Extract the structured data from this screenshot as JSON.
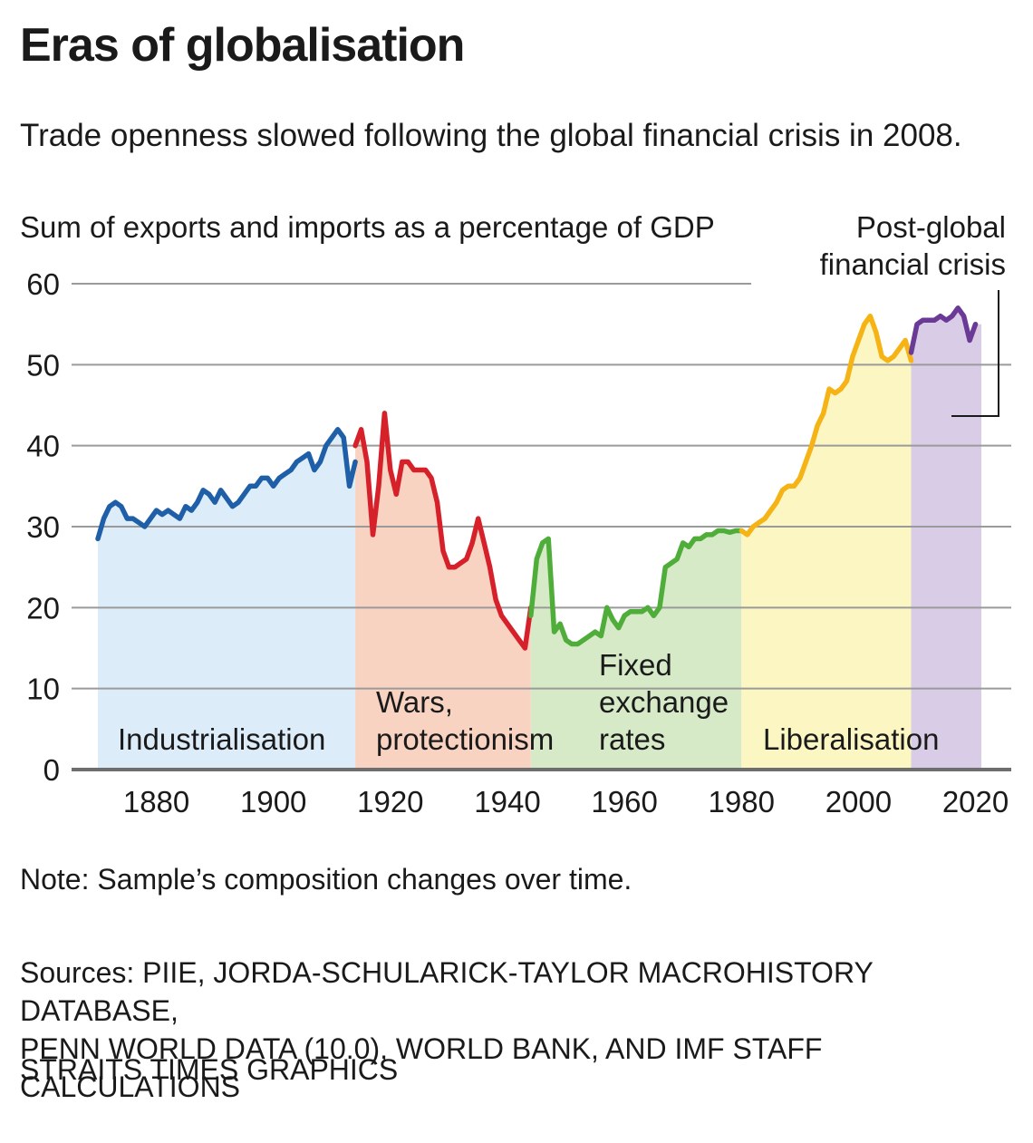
{
  "title": "Eras of globalisation",
  "subtitle": "Trade openness slowed following the global financial crisis in 2008.",
  "note": "Note: Sample’s composition changes over time.",
  "sources": {
    "line1": "Sources: PIIE, JORDA-SCHULARICK-TAYLOR MACROHISTORY DATABASE,",
    "line2": "PENN WORLD DATA (10.0), WORLD BANK, AND IMF STAFF CALCULATIONS"
  },
  "credit": "STRAITS TIMES GRAPHICS",
  "chart_data": {
    "type": "line",
    "title": "Eras of globalisation",
    "ylabel": "Sum of exports and imports as a percentage of GDP",
    "xlabel": "",
    "ylim": [
      0,
      60
    ],
    "xlim": [
      1870,
      2021
    ],
    "yticks": [
      "0",
      "10",
      "20",
      "30",
      "40",
      "50",
      "60"
    ],
    "xticks": [
      "1880",
      "1900",
      "1920",
      "1940",
      "1960",
      "1980",
      "2000",
      "2020"
    ],
    "grid": true,
    "annotation": {
      "line1": "Post-global",
      "line2": "financial crisis",
      "target_years": [
        2009,
        2021
      ]
    },
    "eras": [
      {
        "name": "Industrialisation",
        "label_lines": [
          "Industrialisation"
        ],
        "start": 1870,
        "end": 1914,
        "fill": "#dcecf9",
        "color": "#1f5fa8",
        "points": [
          [
            1870,
            28.5
          ],
          [
            1871,
            31
          ],
          [
            1872,
            32.5
          ],
          [
            1873,
            33
          ],
          [
            1874,
            32.5
          ],
          [
            1875,
            31
          ],
          [
            1876,
            31
          ],
          [
            1877,
            30.5
          ],
          [
            1878,
            30
          ],
          [
            1879,
            31
          ],
          [
            1880,
            32
          ],
          [
            1881,
            31.5
          ],
          [
            1882,
            32
          ],
          [
            1883,
            31.5
          ],
          [
            1884,
            31
          ],
          [
            1885,
            32.5
          ],
          [
            1886,
            32
          ],
          [
            1887,
            33
          ],
          [
            1888,
            34.5
          ],
          [
            1889,
            34
          ],
          [
            1890,
            33
          ],
          [
            1891,
            34.5
          ],
          [
            1892,
            33.5
          ],
          [
            1893,
            32.5
          ],
          [
            1894,
            33
          ],
          [
            1895,
            34
          ],
          [
            1896,
            35
          ],
          [
            1897,
            35
          ],
          [
            1898,
            36
          ],
          [
            1899,
            36
          ],
          [
            1900,
            35
          ],
          [
            1901,
            36
          ],
          [
            1902,
            36.5
          ],
          [
            1903,
            37
          ],
          [
            1904,
            38
          ],
          [
            1905,
            38.5
          ],
          [
            1906,
            39
          ],
          [
            1907,
            37
          ],
          [
            1908,
            38
          ],
          [
            1909,
            40
          ],
          [
            1910,
            41
          ],
          [
            1911,
            42
          ],
          [
            1912,
            41
          ],
          [
            1913,
            35
          ],
          [
            1914,
            38
          ]
        ]
      },
      {
        "name": "Wars, protectionism",
        "label_lines": [
          "Wars,",
          "protectionism"
        ],
        "start": 1914,
        "end": 1944,
        "fill": "#f9d3c2",
        "color": "#d6202a",
        "points": [
          [
            1914,
            40
          ],
          [
            1915,
            42
          ],
          [
            1916,
            38
          ],
          [
            1917,
            29
          ],
          [
            1918,
            35
          ],
          [
            1919,
            44
          ],
          [
            1920,
            37
          ],
          [
            1921,
            34
          ],
          [
            1922,
            38
          ],
          [
            1923,
            38
          ],
          [
            1924,
            37
          ],
          [
            1925,
            37
          ],
          [
            1926,
            37
          ],
          [
            1927,
            36
          ],
          [
            1928,
            33
          ],
          [
            1929,
            27
          ],
          [
            1930,
            25
          ],
          [
            1931,
            25
          ],
          [
            1932,
            25.5
          ],
          [
            1933,
            26
          ],
          [
            1934,
            28
          ],
          [
            1935,
            31
          ],
          [
            1936,
            28
          ],
          [
            1937,
            25
          ],
          [
            1938,
            21
          ],
          [
            1939,
            19
          ],
          [
            1940,
            18
          ],
          [
            1941,
            17
          ],
          [
            1942,
            16
          ],
          [
            1943,
            15
          ],
          [
            1944,
            20
          ]
        ]
      },
      {
        "name": "Fixed exchange rates",
        "label_lines": [
          "Fixed",
          "exchange",
          "rates"
        ],
        "start": 1944,
        "end": 1980,
        "fill": "#d6eac8",
        "color": "#4fad3a",
        "points": [
          [
            1944,
            19
          ],
          [
            1945,
            26
          ],
          [
            1946,
            28
          ],
          [
            1947,
            28.5
          ],
          [
            1948,
            17
          ],
          [
            1949,
            18
          ],
          [
            1950,
            16
          ],
          [
            1951,
            15.5
          ],
          [
            1952,
            15.5
          ],
          [
            1953,
            16
          ],
          [
            1954,
            16.5
          ],
          [
            1955,
            17
          ],
          [
            1956,
            16.5
          ],
          [
            1957,
            20
          ],
          [
            1958,
            18.5
          ],
          [
            1959,
            17.5
          ],
          [
            1960,
            19
          ],
          [
            1961,
            19.5
          ],
          [
            1962,
            19.5
          ],
          [
            1963,
            19.5
          ],
          [
            1964,
            20
          ],
          [
            1965,
            19
          ],
          [
            1966,
            20
          ],
          [
            1967,
            25
          ],
          [
            1968,
            25.5
          ],
          [
            1969,
            26
          ],
          [
            1970,
            28
          ],
          [
            1971,
            27.5
          ],
          [
            1972,
            28.5
          ],
          [
            1973,
            28.5
          ],
          [
            1974,
            29
          ],
          [
            1975,
            29
          ],
          [
            1976,
            29.5
          ],
          [
            1977,
            29.5
          ],
          [
            1978,
            29.3
          ],
          [
            1979,
            29.5
          ],
          [
            1980,
            29.5
          ]
        ]
      },
      {
        "name": "Liberalisation",
        "label_lines": [
          "Liberalisation"
        ],
        "start": 1980,
        "end": 2009,
        "fill": "#fcf7c2",
        "color": "#f5b316",
        "points": [
          [
            1980,
            29.5
          ],
          [
            1981,
            29
          ],
          [
            1982,
            30
          ],
          [
            1983,
            30.5
          ],
          [
            1984,
            31
          ],
          [
            1985,
            32
          ],
          [
            1986,
            33
          ],
          [
            1987,
            34.5
          ],
          [
            1988,
            35
          ],
          [
            1989,
            35
          ],
          [
            1990,
            36
          ],
          [
            1991,
            38
          ],
          [
            1992,
            40
          ],
          [
            1993,
            42.5
          ],
          [
            1994,
            44
          ],
          [
            1995,
            47
          ],
          [
            1996,
            46.5
          ],
          [
            1997,
            47
          ],
          [
            1998,
            48
          ],
          [
            1999,
            51
          ],
          [
            2000,
            53
          ],
          [
            2001,
            55
          ],
          [
            2002,
            56
          ],
          [
            2003,
            54
          ],
          [
            2004,
            51
          ],
          [
            2005,
            50.5
          ],
          [
            2006,
            51
          ],
          [
            2007,
            52
          ],
          [
            2008,
            53
          ],
          [
            2009,
            50.5
          ]
        ]
      },
      {
        "name": "Post-global financial crisis",
        "label_lines": [],
        "start": 2009,
        "end": 2021,
        "fill": "#d9cce6",
        "color": "#6b3a96",
        "points": [
          [
            2009,
            51.5
          ],
          [
            2010,
            55
          ],
          [
            2011,
            55.5
          ],
          [
            2012,
            55.5
          ],
          [
            2013,
            55.5
          ],
          [
            2014,
            56
          ],
          [
            2015,
            55.5
          ],
          [
            2016,
            56
          ],
          [
            2017,
            57
          ],
          [
            2018,
            56
          ],
          [
            2019,
            53
          ],
          [
            2020,
            55
          ]
        ]
      }
    ]
  }
}
